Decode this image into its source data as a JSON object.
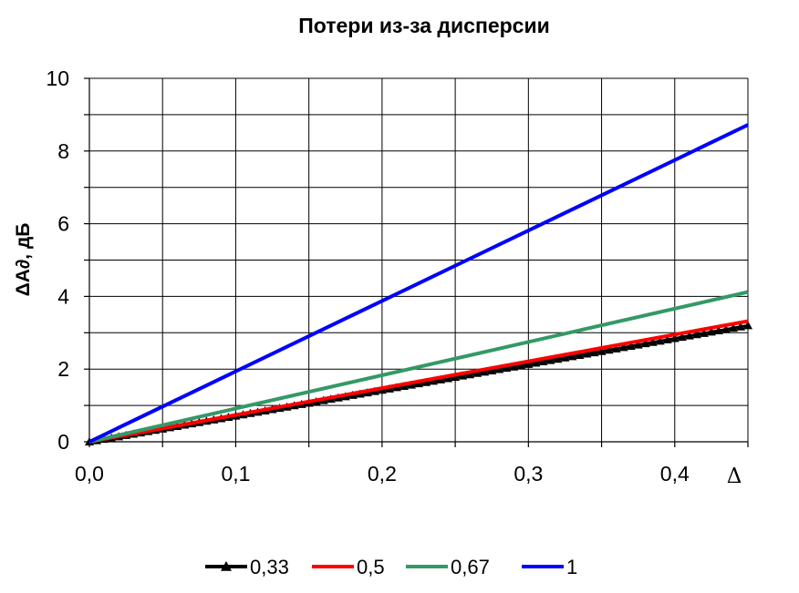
{
  "chart_data": {
    "type": "line",
    "title": "Потери из-за дисперсии",
    "xlabel": "Δ",
    "ylabel": "ΔA∂, дБ",
    "xlim": [
      0,
      0.45
    ],
    "ylim": [
      0,
      10
    ],
    "x_ticks": [
      "0,0",
      "0,1",
      "0,2",
      "0,3",
      "0,4"
    ],
    "y_ticks": [
      "0",
      "2",
      "4",
      "6",
      "8",
      "10"
    ],
    "grid": true,
    "legend_position": "bottom",
    "series": [
      {
        "name": "0,33",
        "color": "#000000",
        "marker": "triangle",
        "x": [
          0,
          0.45
        ],
        "y": [
          0,
          3.2
        ]
      },
      {
        "name": "0,5",
        "color": "#ff0000",
        "marker": "none",
        "x": [
          0,
          0.45
        ],
        "y": [
          0,
          3.32
        ]
      },
      {
        "name": "0,67",
        "color": "#339966",
        "marker": "none",
        "x": [
          0,
          0.45
        ],
        "y": [
          0,
          4.12
        ]
      },
      {
        "name": "1",
        "color": "#0000ff",
        "marker": "none",
        "x": [
          0,
          0.45
        ],
        "y": [
          0,
          8.72
        ]
      }
    ]
  }
}
